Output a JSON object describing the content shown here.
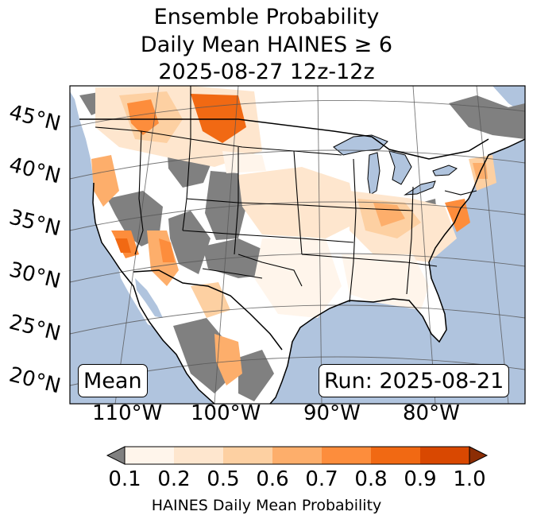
{
  "title": {
    "line1": "Ensemble Probability",
    "line2": "Daily Mean HAINES ≥ 6",
    "line3": "2025-08-27 12z-12z"
  },
  "map": {
    "ocean_color": "#b0c4de",
    "land_color": "#ffffff",
    "nodata_color": "#808080",
    "lat_labels": [
      "45°N",
      "40°N",
      "35°N",
      "30°N",
      "25°N",
      "20°N"
    ],
    "lon_labels": [
      "110°W",
      "100°W",
      "90°W",
      "80°W"
    ],
    "mean_label": "Mean",
    "run_label": "Run: 2025-08-21"
  },
  "colorbar": {
    "ticks": [
      "0.1",
      "0.2",
      "0.5",
      "0.6",
      "0.7",
      "0.8",
      "0.9",
      "1.0"
    ],
    "colors": [
      "#fff5eb",
      "#fee6ce",
      "#fdd0a2",
      "#fdae6b",
      "#fd8d3c",
      "#f16913",
      "#d94801"
    ],
    "under_color": "#808080",
    "over_color": "#8c2d04",
    "label": "HAINES Daily Mean Probability"
  }
}
